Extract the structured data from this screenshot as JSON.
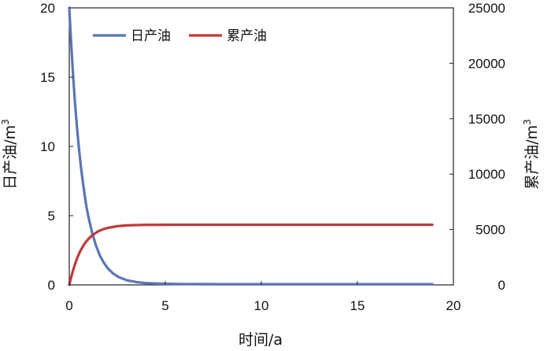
{
  "chart_data": {
    "type": "line",
    "xlabel": "时间/a",
    "ylabel_left": "日产油/m",
    "ylabel_left_sup": "3",
    "ylabel_right": "累产油/m",
    "ylabel_right_sup": "3",
    "xlim": [
      0,
      20
    ],
    "ylim_left": [
      0,
      20
    ],
    "ylim_right": [
      0,
      25000
    ],
    "x_ticks": [
      "0",
      "5",
      "10",
      "15",
      "20"
    ],
    "y_left_ticks": [
      "0",
      "5",
      "10",
      "15",
      "20"
    ],
    "y_right_ticks": [
      "0",
      "5000",
      "10000",
      "15000",
      "20000",
      "25000"
    ],
    "grid": false,
    "legend_position": "top-left",
    "series": [
      {
        "name": "日产油",
        "axis": "left",
        "color": "#5b74b5",
        "x": [
          0,
          0.1,
          0.2,
          0.3,
          0.4,
          0.5,
          0.6,
          0.7,
          0.8,
          0.9,
          1.0,
          1.2,
          1.4,
          1.6,
          1.8,
          2.0,
          2.3,
          2.6,
          3.0,
          3.5,
          4.0,
          4.5,
          5.0,
          6,
          8,
          10,
          12,
          14,
          16,
          18,
          18.9
        ],
        "y": [
          20,
          17.4,
          15.1,
          13.1,
          11.4,
          9.9,
          8.6,
          7.5,
          6.5,
          5.6,
          4.9,
          3.7,
          2.8,
          2.1,
          1.6,
          1.2,
          0.8,
          0.55,
          0.33,
          0.2,
          0.13,
          0.1,
          0.08,
          0.06,
          0.05,
          0.05,
          0.05,
          0.05,
          0.05,
          0.05,
          0.05
        ]
      },
      {
        "name": "累产油",
        "axis": "right",
        "color": "#c0393b",
        "x": [
          0,
          0.1,
          0.2,
          0.3,
          0.4,
          0.5,
          0.6,
          0.8,
          1.0,
          1.2,
          1.5,
          1.8,
          2.0,
          2.5,
          3.0,
          3.5,
          4.0,
          5.0,
          6,
          8,
          10,
          12,
          14,
          16,
          18,
          18.9
        ],
        "y": [
          0,
          700,
          1330,
          1880,
          2360,
          2780,
          3140,
          3730,
          4150,
          4480,
          4830,
          5050,
          5140,
          5300,
          5370,
          5400,
          5415,
          5425,
          5430,
          5430,
          5430,
          5430,
          5430,
          5430,
          5430,
          5430
        ]
      }
    ]
  }
}
